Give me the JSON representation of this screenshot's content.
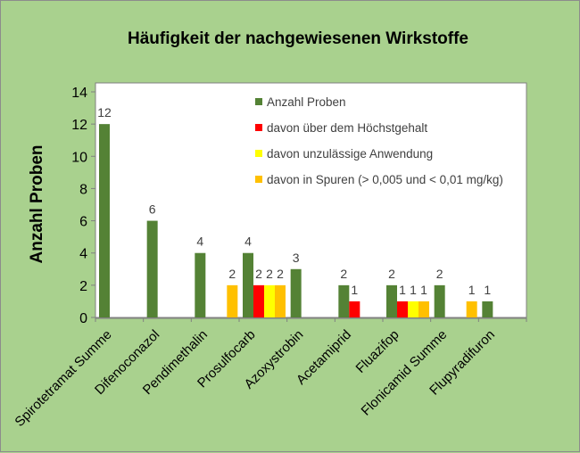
{
  "chart_data": {
    "type": "bar",
    "title": "Häufigkeit der nachgewiesenen Wirkstoffe",
    "xlabel": "",
    "ylabel": "Anzahl Proben",
    "ylim": [
      0,
      14
    ],
    "yticks": [
      "0",
      "2",
      "4",
      "6",
      "8",
      "10",
      "12",
      "14"
    ],
    "grid": false,
    "legend_position": "inside-top-right",
    "categories": [
      "Spirotetramat Summe",
      "Difenoconazol",
      "Pendimethalin",
      "Prosulfocarb",
      "Azoxystrobin",
      "Acetamiprid",
      "Fluazifop",
      "Flonicamid Summe",
      "Flupyradifuron"
    ],
    "series": [
      {
        "name": "Anzahl Proben",
        "color": "#548235",
        "values": [
          12,
          6,
          4,
          4,
          3,
          2,
          2,
          2,
          1
        ]
      },
      {
        "name": "davon über dem Höchstgehalt",
        "color": "#ff0000",
        "values": [
          0,
          0,
          0,
          2,
          0,
          1,
          1,
          0,
          0
        ]
      },
      {
        "name": "davon unzulässige Anwendung",
        "color": "#ffff00",
        "values": [
          0,
          0,
          0,
          2,
          0,
          0,
          1,
          0,
          0
        ]
      },
      {
        "name": "davon in Spuren (> 0,005 und < 0,01 mg/kg)",
        "color": "#ffc000",
        "values": [
          0,
          0,
          2,
          2,
          0,
          0,
          1,
          1,
          0
        ]
      }
    ],
    "background_color": "#a9d18e",
    "plot_background": "#ffffff"
  }
}
